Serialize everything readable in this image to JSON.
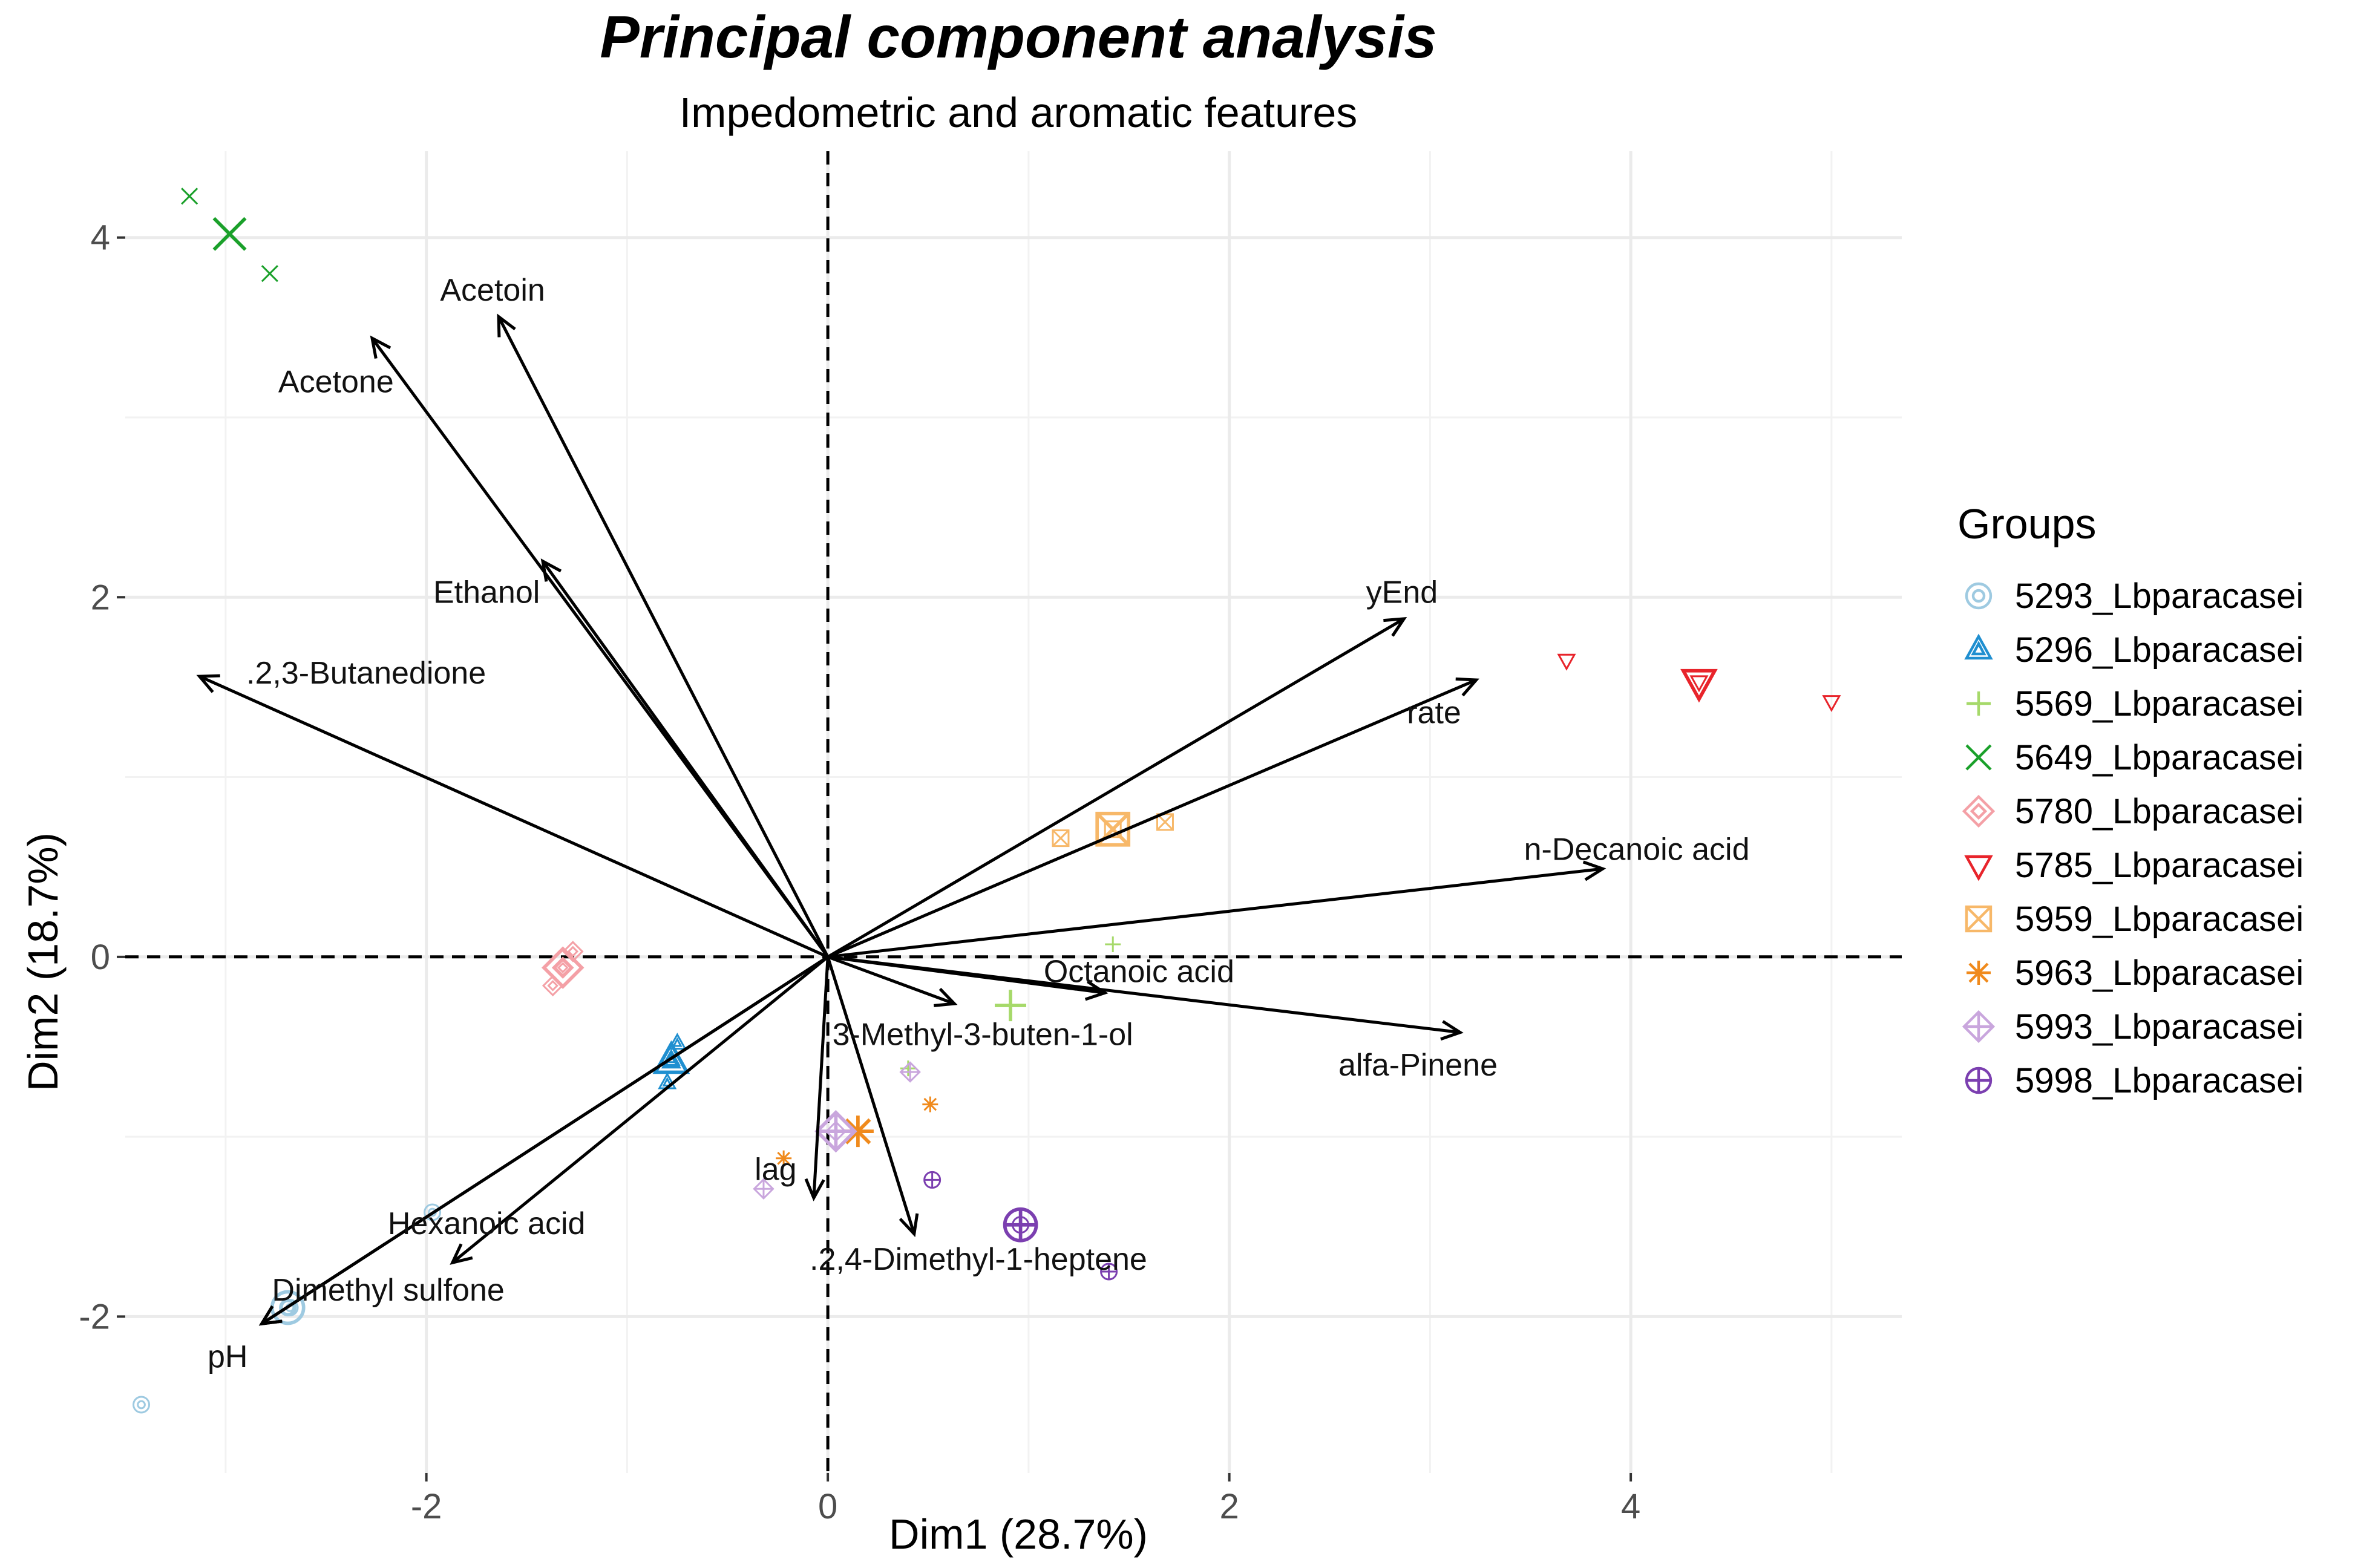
{
  "chart_data": {
    "type": "scatter",
    "title": "Principal component analysis",
    "subtitle": "Impedometric and aromatic features",
    "xlabel": "Dim1 (28.7%)",
    "ylabel": "Dim2 (18.7%)",
    "xlim": [
      -3.5,
      5.35
    ],
    "ylim": [
      -2.87,
      4.48
    ],
    "grid": true,
    "x_ticks": [
      -2,
      0,
      2,
      4
    ],
    "x_tick_labels": [
      "-2",
      "0",
      "2",
      "4"
    ],
    "y_ticks": [
      -2,
      0,
      2,
      4
    ],
    "y_tick_labels": [
      "-2",
      "0",
      "2",
      "4"
    ],
    "reference_lines": {
      "x": 0,
      "y": 0,
      "style": "dashed"
    },
    "legend": {
      "title": "Groups",
      "position": "right"
    },
    "series": [
      {
        "name": "5293_Lbparacasei",
        "color": "#9ecae1",
        "shape": "circle-o",
        "points": [
          [
            -3.42,
            -2.49
          ],
          [
            -1.97,
            -1.42
          ],
          [
            -2.68,
            -1.95
          ]
        ],
        "centroid": [
          -2.69,
          -1.95
        ]
      },
      {
        "name": "5296_Lbparacasei",
        "color": "#1f8fd0",
        "shape": "triangle",
        "points": [
          [
            -0.75,
            -0.48
          ],
          [
            -0.8,
            -0.7
          ],
          [
            -0.78,
            -0.57
          ]
        ],
        "centroid": [
          -0.78,
          -0.58
        ]
      },
      {
        "name": "5569_Lbparacasei",
        "color": "#a6d96a",
        "shape": "plus",
        "points": [
          [
            1.42,
            0.07
          ],
          [
            0.4,
            -0.62
          ],
          [
            0.91,
            -0.27
          ]
        ],
        "centroid": [
          0.91,
          -0.27
        ]
      },
      {
        "name": "5649_Lbparacasei",
        "color": "#1aa02a",
        "shape": "x",
        "points": [
          [
            -3.18,
            4.23
          ],
          [
            -2.78,
            3.8
          ],
          [
            -2.98,
            4.02
          ]
        ],
        "centroid": [
          -2.98,
          4.02
        ]
      },
      {
        "name": "5780_Lbparacasei",
        "color": "#f4a0a6",
        "shape": "diamond",
        "points": [
          [
            -1.27,
            0.03
          ],
          [
            -1.37,
            -0.16
          ],
          [
            -1.32,
            -0.06
          ]
        ],
        "centroid": [
          -1.32,
          -0.06
        ]
      },
      {
        "name": "5785_Lbparacasei",
        "color": "#e8242b",
        "shape": "triangle-down",
        "points": [
          [
            3.68,
            1.65
          ],
          [
            5.0,
            1.42
          ],
          [
            4.34,
            1.53
          ]
        ],
        "centroid": [
          4.34,
          1.53
        ]
      },
      {
        "name": "5959_Lbparacasei",
        "color": "#f7b869",
        "shape": "square-x",
        "points": [
          [
            1.16,
            0.66
          ],
          [
            1.68,
            0.75
          ],
          [
            1.42,
            0.71
          ]
        ],
        "centroid": [
          1.42,
          0.71
        ]
      },
      {
        "name": "5963_Lbparacasei",
        "color": "#f08a1c",
        "shape": "asterisk",
        "points": [
          [
            -0.22,
            -1.12
          ],
          [
            0.51,
            -0.82
          ],
          [
            0.15,
            -0.97
          ]
        ],
        "centroid": [
          0.15,
          -0.97
        ]
      },
      {
        "name": "5993_Lbparacasei",
        "color": "#c9a6dd",
        "shape": "diamond-plus",
        "points": [
          [
            -0.32,
            -1.29
          ],
          [
            0.41,
            -0.64
          ],
          [
            0.04,
            -0.97
          ]
        ],
        "centroid": [
          0.04,
          -0.97
        ]
      },
      {
        "name": "5998_Lbparacasei",
        "color": "#7b3fb0",
        "shape": "circle-plus",
        "points": [
          [
            0.52,
            -1.24
          ],
          [
            1.4,
            -1.75
          ],
          [
            0.96,
            -1.49
          ]
        ],
        "centroid": [
          0.96,
          -1.49
        ]
      }
    ],
    "vectors": [
      {
        "name": "Acetoin",
        "x": -1.64,
        "y": 3.56
      },
      {
        "name": "Acetone",
        "x": -2.27,
        "y": 3.44
      },
      {
        "name": "Ethanol",
        "x": -1.42,
        "y": 2.2
      },
      {
        "name": "2,3-Butanedione",
        "x": -3.13,
        "y": 1.56
      },
      {
        "name": "yEnd",
        "x": 2.87,
        "y": 1.88
      },
      {
        "name": "rate",
        "x": 3.23,
        "y": 1.54
      },
      {
        "name": "n-Decanoic acid",
        "x": 3.86,
        "y": 0.49
      },
      {
        "name": "Octanoic acid",
        "x": 1.38,
        "y": -0.2
      },
      {
        "name": "alfa-Pinene",
        "x": 3.15,
        "y": -0.42
      },
      {
        "name": "3-Methyl-3-buten-1-ol",
        "x": 0.63,
        "y": -0.26
      },
      {
        "name": "lag",
        "x": -0.07,
        "y": -1.34
      },
      {
        "name": "2,4-Dimethyl-1-heptene",
        "x": 0.43,
        "y": -1.54
      },
      {
        "name": "Hexanoic acid",
        "x": -1.87,
        "y": -1.7
      },
      {
        "name": "Dimethyl sulfone",
        "x": -2.82,
        "y": -2.04
      },
      {
        "name": "pH",
        "x": -2.82,
        "y": -2.04
      }
    ],
    "vector_labels": [
      {
        "name": "Acetoin",
        "text": "Acetoin",
        "x": -1.67,
        "y": 3.71
      },
      {
        "name": "Acetone",
        "text": "Acetone",
        "x": -2.45,
        "y": 3.2
      },
      {
        "name": "Ethanol",
        "text": "Ethanol",
        "x": -1.7,
        "y": 2.03
      },
      {
        "name": "2,3-Butanedione",
        "text": ".2,3-Butanedione",
        "x": -2.3,
        "y": 1.58
      },
      {
        "name": "yEnd",
        "text": "yEnd",
        "x": 2.86,
        "y": 2.03
      },
      {
        "name": "rate",
        "text": "rate",
        "x": 3.02,
        "y": 1.36
      },
      {
        "name": "n-Decanoic acid",
        "text": "n-Decanoic acid",
        "x": 4.03,
        "y": 0.6
      },
      {
        "name": "Octanoic acid",
        "text": "Octanoic acid",
        "x": 1.55,
        "y": -0.08
      },
      {
        "name": "alfa-Pinene",
        "text": "alfa-Pinene",
        "x": 2.94,
        "y": -0.6
      },
      {
        "name": "3-Methyl-3-buten-1-ol",
        "text": ".3-Methyl-3-buten-1-ol",
        "x": 0.75,
        "y": -0.43
      },
      {
        "name": "lag",
        "text": "lag",
        "x": -0.26,
        "y": -1.18
      },
      {
        "name": "2,4-Dimethyl-1-heptene",
        "text": ".2,4-Dimethyl-1-heptene",
        "x": 0.75,
        "y": -1.68
      },
      {
        "name": "Hexanoic acid",
        "text": "Hexanoic acid",
        "x": -1.7,
        "y": -1.48
      },
      {
        "name": "Dimethyl sulfone",
        "text": "Dimethyl sulfone",
        "x": -2.19,
        "y": -1.85
      },
      {
        "name": "pH",
        "text": "pH",
        "x": -2.99,
        "y": -2.22
      }
    ]
  }
}
